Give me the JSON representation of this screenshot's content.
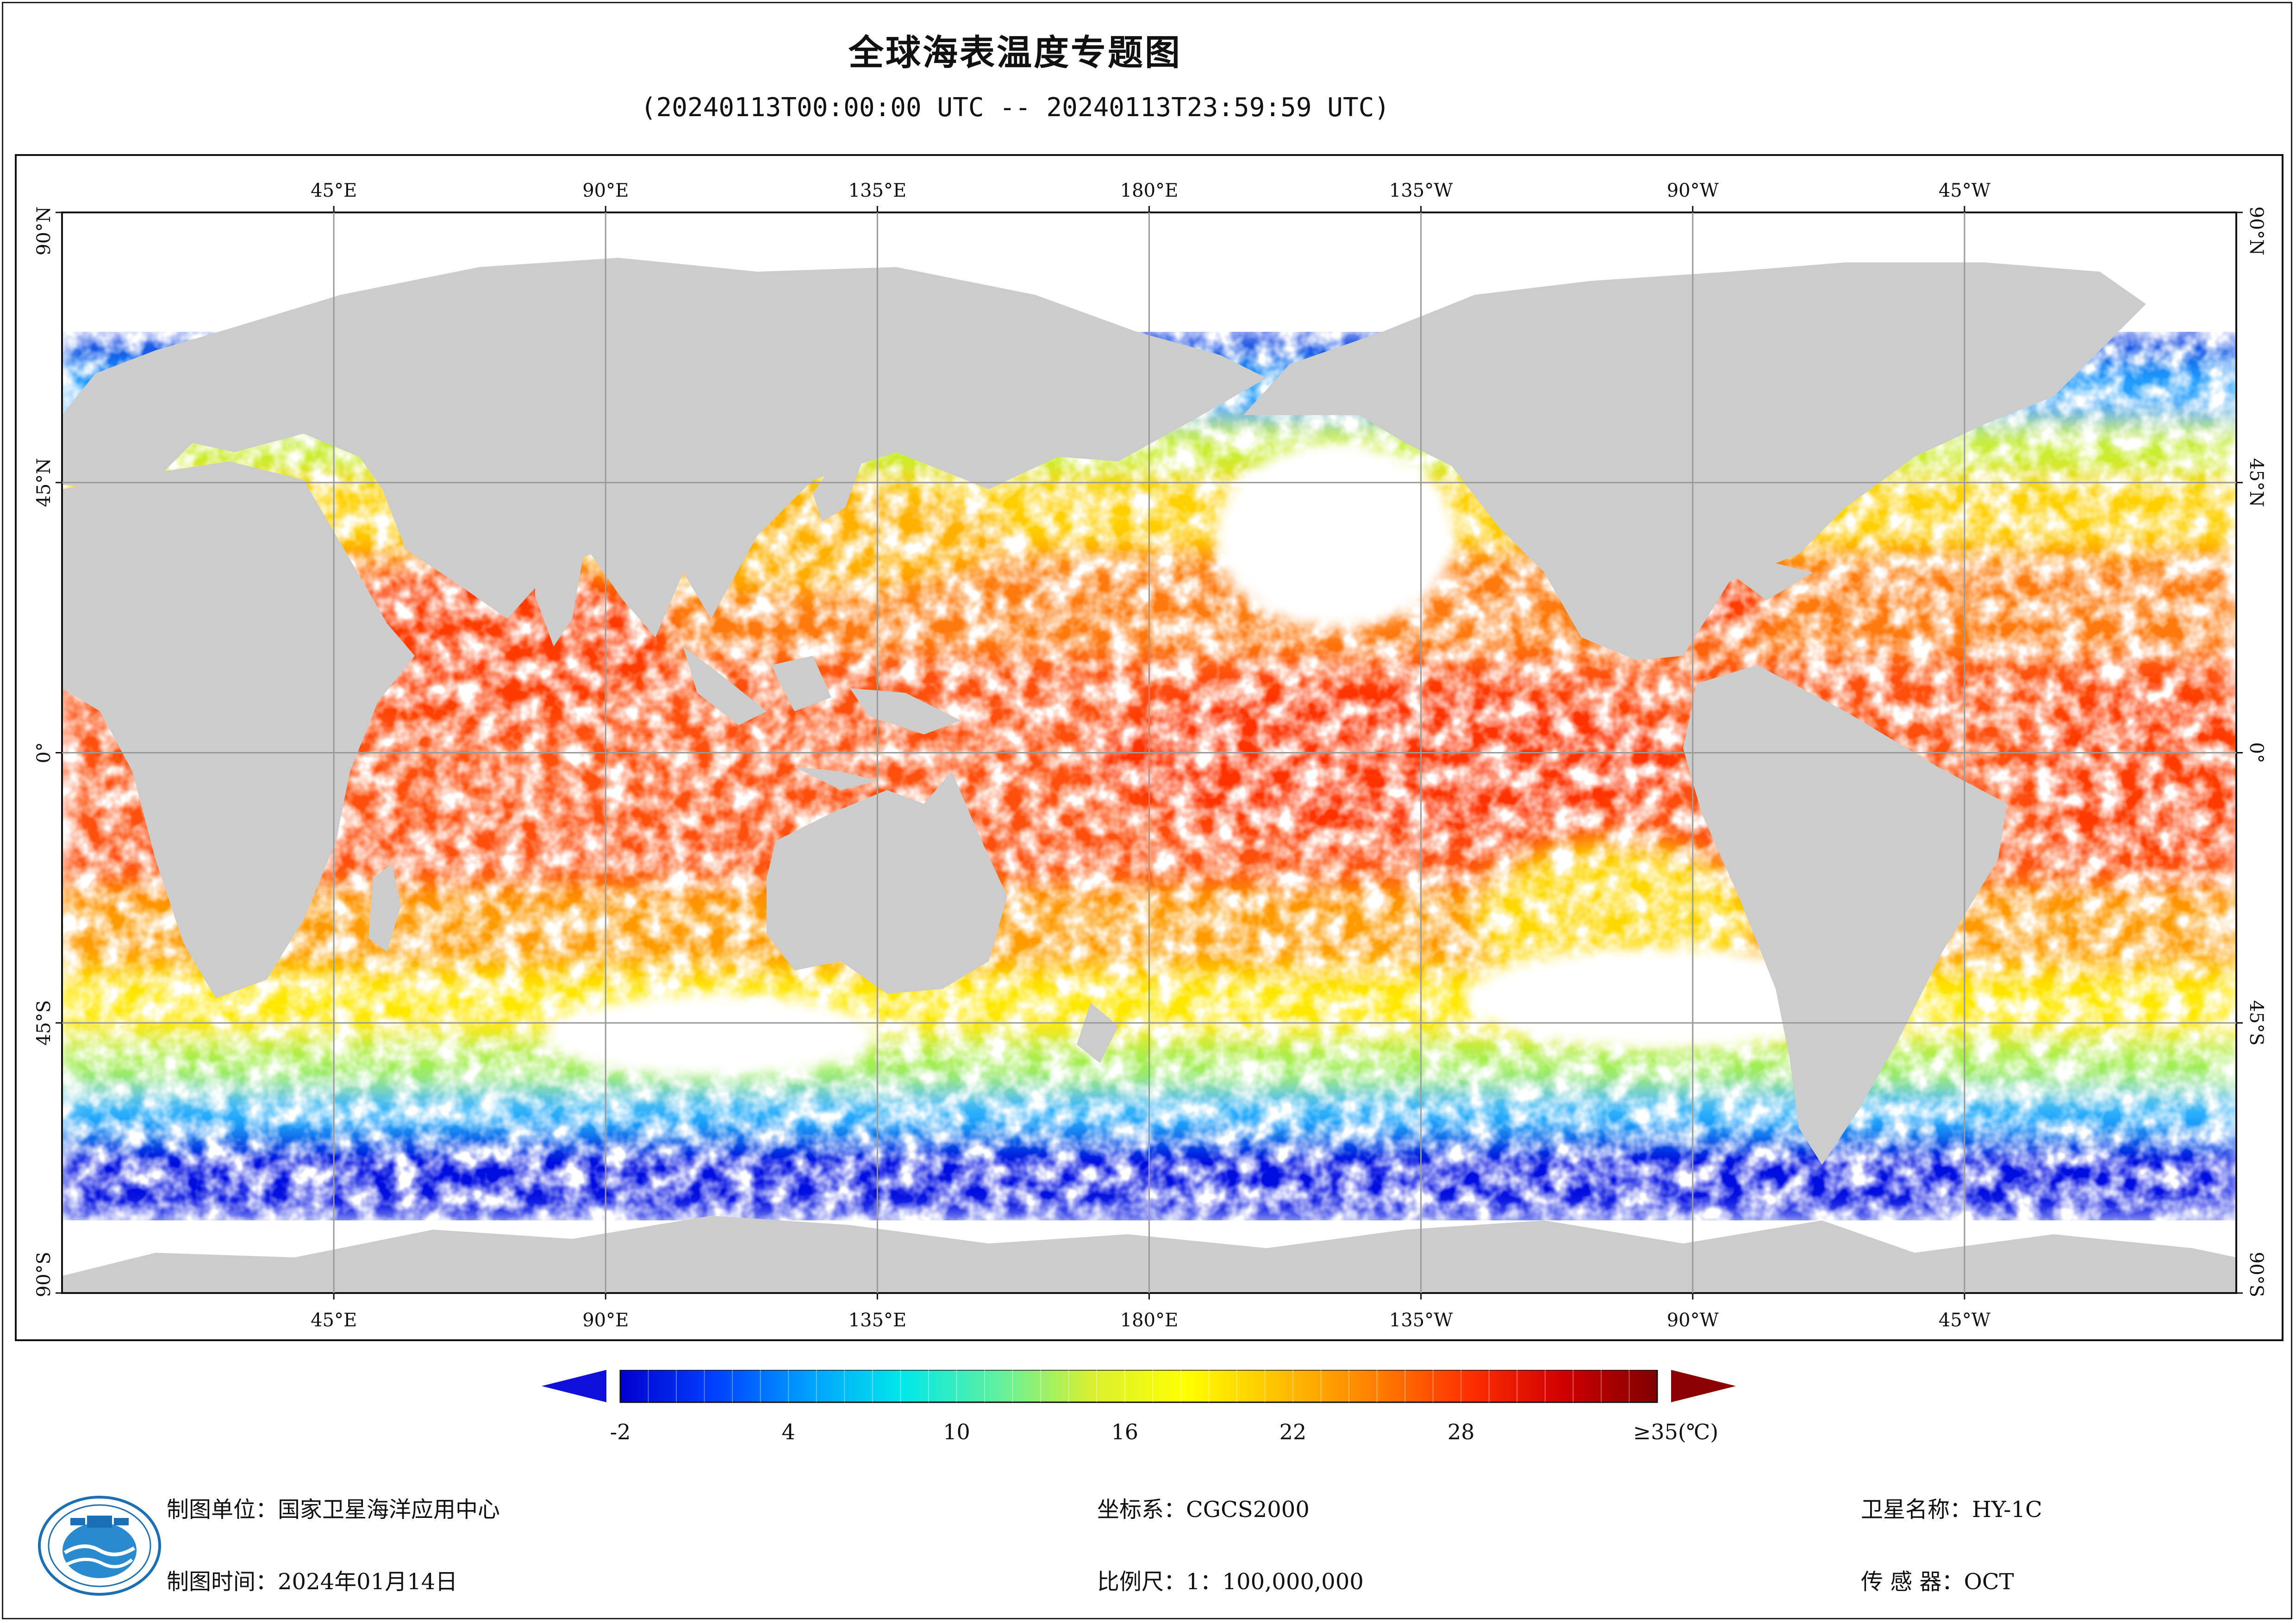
{
  "title": "全球海表温度专题图",
  "time_range": "(20240113T00:00:00 UTC -- 20240113T23:59:59 UTC)",
  "map": {
    "lon_labels": [
      "45°E",
      "90°E",
      "135°E",
      "180°E",
      "135°W",
      "90°W",
      "45°W"
    ],
    "lat_labels": [
      "90°N",
      "45°N",
      "0°",
      "45°S",
      "90°S"
    ],
    "colors": {
      "land": "#cccccc",
      "no_data": "#ffffff",
      "grid": "#9a9a9a"
    }
  },
  "colorbar": {
    "ticks": [
      "-2",
      "4",
      "10",
      "16",
      "22",
      "28",
      "≥35(℃)"
    ],
    "tick_values": [
      -2,
      4,
      10,
      16,
      22,
      28,
      35
    ],
    "min": -2,
    "max": 35,
    "under_color": "#1010dd",
    "over_color": "#8b0000",
    "stops": [
      "#0000cd",
      "#0040ff",
      "#00a0ff",
      "#00e8e8",
      "#60f0a0",
      "#d8f030",
      "#ffff00",
      "#ffc000",
      "#ff8000",
      "#ff3000",
      "#d00000",
      "#800000"
    ]
  },
  "footer": {
    "unit_label": "制图单位：",
    "unit_value": "国家卫星海洋应用中心",
    "time_label": "制图时间：",
    "time_value": "2024年01月14日",
    "crs_label": "坐标系：",
    "crs_value": "CGCS2000",
    "scale_label": "比例尺：",
    "scale_value": "1：100,000,000",
    "satellite_label": "卫星名称：",
    "satellite_value": "HY-1C",
    "sensor_label": "传 感 器：",
    "sensor_value": "OCT"
  }
}
